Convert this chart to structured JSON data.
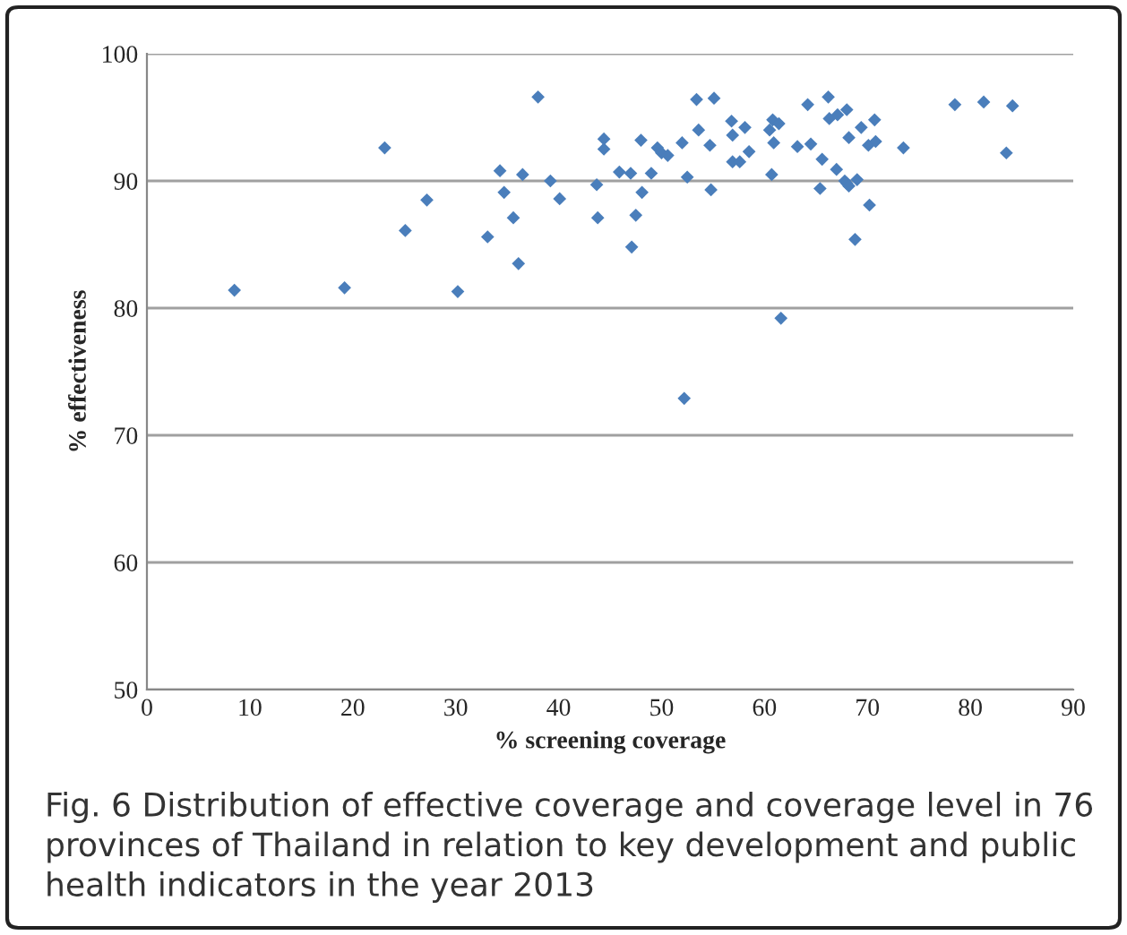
{
  "chart_data": {
    "type": "scatter",
    "xlabel": "% screening coverage",
    "ylabel": "% effectiveness",
    "annotations": [
      "Fig. 6 Distribution of effective coverage and coverage level in 76 provinces of Thailand in relation to key development and public health indicators in the year 2013"
    ],
    "series": [
      {
        "color": "#4a7ebb",
        "x": [
          8.5,
          19.2,
          23.1,
          27.2,
          25.1,
          30.2,
          33.1,
          34.3,
          34.7,
          35.6,
          36.1,
          36.5,
          38.0,
          39.2,
          40.1,
          43.7,
          43.8,
          44.4,
          44.4,
          45.9,
          47.0,
          48.1,
          47.5,
          47.1,
          48.0,
          49.0,
          49.6,
          50.0,
          50.6,
          52.0,
          52.5,
          53.4,
          53.6,
          55.1,
          54.7,
          54.8,
          56.8,
          56.9,
          56.9,
          57.6,
          58.1,
          58.5,
          60.5,
          60.8,
          61.4,
          60.9,
          60.7,
          61.6,
          52.2,
          63.2,
          64.2,
          64.5,
          65.4,
          65.6,
          66.2,
          66.3,
          67.1,
          68.0,
          68.2,
          67.0,
          67.8,
          68.0,
          68.2,
          69.0,
          69.4,
          70.7,
          70.1,
          70.8,
          70.2,
          68.8,
          73.5,
          78.5,
          81.3,
          84.1,
          83.5
        ],
        "values": [
          81.4,
          81.6,
          92.6,
          88.5,
          86.1,
          81.3,
          85.6,
          90.8,
          89.1,
          87.1,
          83.5,
          90.5,
          96.6,
          90.0,
          88.6,
          89.7,
          87.1,
          93.3,
          92.5,
          90.7,
          90.6,
          89.1,
          87.3,
          84.8,
          93.2,
          90.6,
          92.6,
          92.2,
          92.0,
          93.0,
          90.3,
          96.4,
          94.0,
          96.5,
          92.8,
          89.3,
          94.7,
          93.6,
          91.5,
          91.5,
          94.2,
          92.3,
          94.0,
          94.8,
          94.5,
          93.0,
          90.5,
          79.2,
          72.9,
          92.7,
          96.0,
          92.9,
          89.4,
          91.7,
          96.6,
          94.9,
          95.2,
          95.6,
          93.4,
          90.9,
          90.0,
          89.8,
          89.6,
          90.1,
          94.2,
          94.8,
          92.8,
          93.1,
          88.1,
          85.4,
          92.6,
          96.0,
          96.2,
          95.9,
          92.2
        ]
      }
    ],
    "xlim": [
      0,
      90
    ],
    "xticks": [
      0,
      10,
      20,
      30,
      40,
      50,
      60,
      70,
      80,
      90
    ],
    "ylim": [
      50,
      100
    ],
    "yticks": [
      50,
      60,
      70,
      80,
      90,
      100
    ],
    "grid": "y",
    "marker": "diamond",
    "legend": false
  }
}
